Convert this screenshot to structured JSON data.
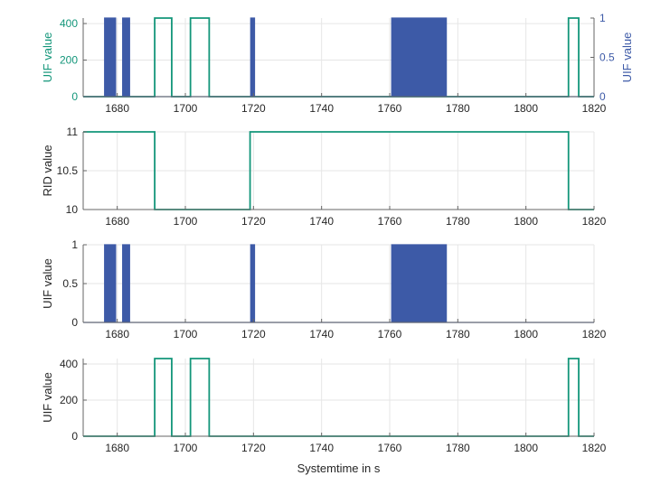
{
  "figure": {
    "xlabel": "Systemtime in s",
    "xlim": [
      1670,
      1820
    ],
    "xticks": [
      1680,
      1700,
      1720,
      1740,
      1760,
      1780,
      1800,
      1820
    ],
    "green_color": "#13967a",
    "blue_color": "#3d5aa7"
  },
  "chart_data": [
    {
      "type": "line",
      "xlabel": "",
      "ylabel": "UIF value",
      "ylim": [
        0,
        430
      ],
      "yticks": [
        0,
        200,
        400
      ],
      "y2label": "UIF value",
      "y2lim": [
        0,
        1
      ],
      "y2ticks": [
        "0",
        "0.5",
        "1"
      ],
      "grid": true,
      "series": [
        {
          "axis": "left",
          "color": "#13967a",
          "x": [
            1670,
            1691,
            1691,
            1696,
            1696,
            1701.5,
            1701.5,
            1707,
            1707,
            1812.5,
            1812.5,
            1815.5,
            1815.5,
            1820
          ],
          "y": [
            0,
            0,
            430,
            430,
            0,
            0,
            430,
            430,
            0,
            0,
            430,
            430,
            0,
            0
          ]
        },
        {
          "axis": "right",
          "color": "#3d5aa7",
          "pulses": [
            [
              1676.3,
              1679.8,
              6
            ],
            [
              1681.6,
              1683.9,
              4
            ],
            [
              1719.2,
              1720.4,
              6
            ],
            [
              1760.6,
              1776.8,
              44
            ]
          ]
        }
      ]
    },
    {
      "type": "line",
      "xlabel": "",
      "ylabel": "RID value",
      "ylim": [
        10,
        11
      ],
      "yticks": [
        "10",
        "10.5",
        "11"
      ],
      "grid": true,
      "series": [
        {
          "color": "#13967a",
          "x": [
            1670,
            1691,
            1691,
            1719,
            1719,
            1812.5,
            1812.5,
            1820
          ],
          "y": [
            11,
            11,
            10,
            10,
            11,
            11,
            10,
            10
          ]
        }
      ]
    },
    {
      "type": "line",
      "xlabel": "",
      "ylabel": "UIF value",
      "ylim": [
        0,
        1
      ],
      "yticks": [
        "0",
        "0.5",
        "1"
      ],
      "grid": true,
      "series": [
        {
          "color": "#3d5aa7",
          "pulses": [
            [
              1676.3,
              1679.8,
              6
            ],
            [
              1681.6,
              1683.9,
              4
            ],
            [
              1719.2,
              1720.4,
              6
            ],
            [
              1760.6,
              1776.8,
              44
            ]
          ]
        }
      ]
    },
    {
      "type": "line",
      "xlabel": "Systemtime in s",
      "ylabel": "UIF value",
      "ylim": [
        0,
        430
      ],
      "yticks": [
        0,
        200,
        400
      ],
      "grid": true,
      "series": [
        {
          "color": "#13967a",
          "x": [
            1670,
            1691,
            1691,
            1696,
            1696,
            1701.5,
            1701.5,
            1707,
            1707,
            1812.5,
            1812.5,
            1815.5,
            1815.5,
            1820
          ],
          "y": [
            0,
            0,
            430,
            430,
            0,
            0,
            430,
            430,
            0,
            0,
            430,
            430,
            0,
            0
          ]
        }
      ]
    }
  ]
}
